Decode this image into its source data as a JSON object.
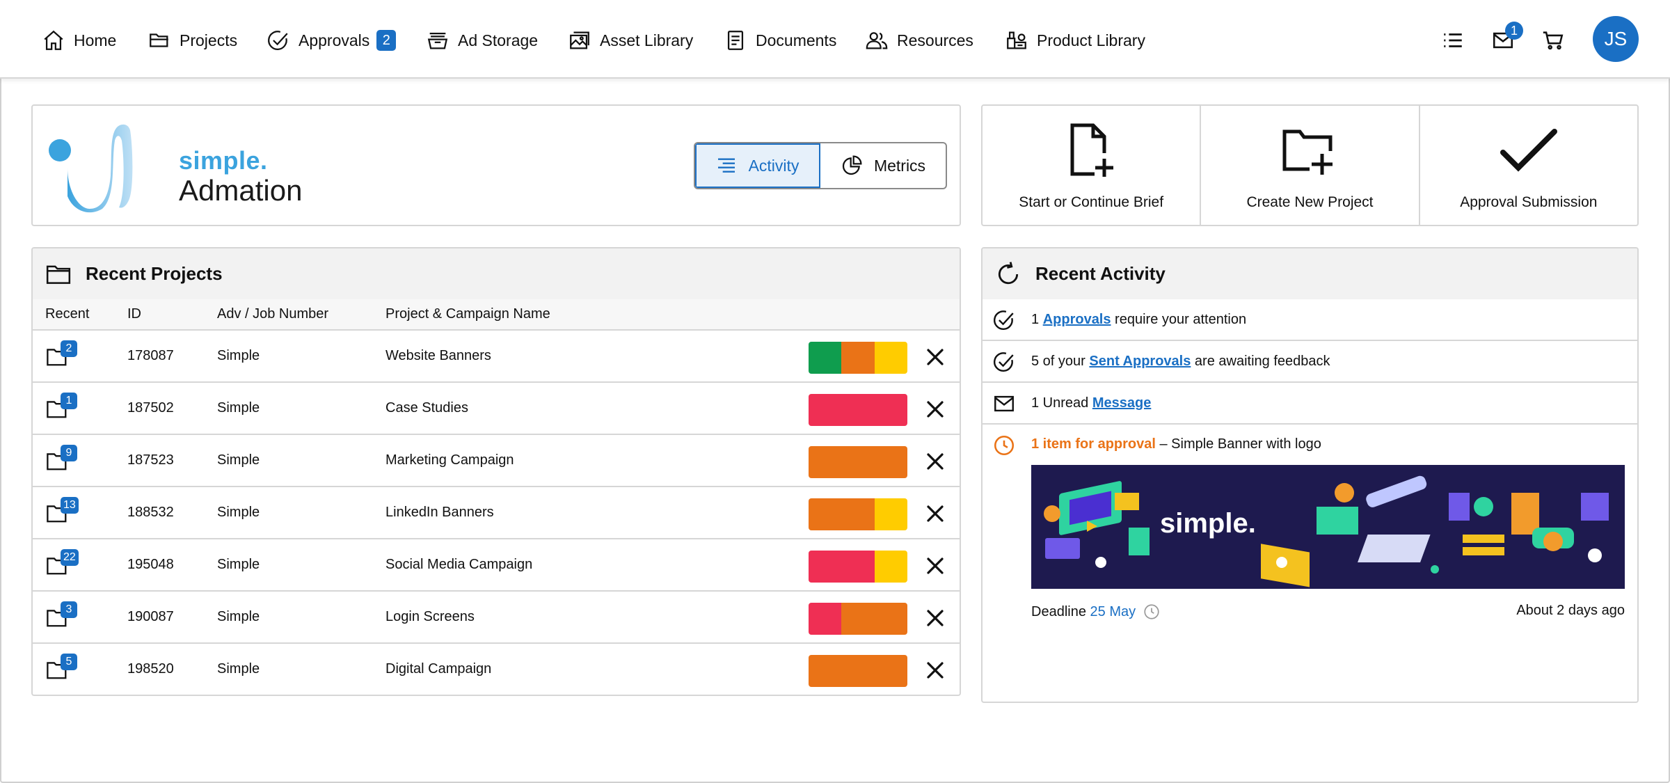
{
  "nav": {
    "items": [
      {
        "label": "Home",
        "icon": "home-icon"
      },
      {
        "label": "Projects",
        "icon": "folder-open-icon"
      },
      {
        "label": "Approvals",
        "icon": "check-circle-icon",
        "badge": "2"
      },
      {
        "label": "Ad Storage",
        "icon": "tray-icon"
      },
      {
        "label": "Asset Library",
        "icon": "images-icon"
      },
      {
        "label": "Documents",
        "icon": "document-icon"
      },
      {
        "label": "Resources",
        "icon": "users-icon"
      },
      {
        "label": "Product Library",
        "icon": "product-library-icon"
      }
    ],
    "mail_badge": "1",
    "avatar_initials": "JS"
  },
  "brand": {
    "line1": "simple.",
    "line2": "Admation"
  },
  "view_toggle": {
    "activity_label": "Activity",
    "metrics_label": "Metrics",
    "selected": "Activity"
  },
  "quick_actions": [
    {
      "label": "Start or Continue Brief",
      "icon": "new-document-icon"
    },
    {
      "label": "Create New Project",
      "icon": "new-folder-icon"
    },
    {
      "label": "Approval Submission",
      "icon": "checkmark-icon"
    }
  ],
  "recent_projects": {
    "title": "Recent Projects",
    "columns": {
      "recent": "Recent",
      "id": "ID",
      "job": "Adv / Job Number",
      "name": "Project & Campaign Name"
    },
    "rows": [
      {
        "badge": "2",
        "id": "178087",
        "job": "Simple",
        "name": "Website Banners",
        "status": [
          {
            "color": "#0f9d4e",
            "share": 0.33
          },
          {
            "color": "#ea7317",
            "share": 0.34
          },
          {
            "color": "#ffcc00",
            "share": 0.33
          }
        ]
      },
      {
        "badge": "1",
        "id": "187502",
        "job": "Simple",
        "name": "Case Studies",
        "status": [
          {
            "color": "#ef2f54",
            "share": 1.0
          }
        ]
      },
      {
        "badge": "9",
        "id": "187523",
        "job": "Simple",
        "name": "Marketing Campaign",
        "status": [
          {
            "color": "#ea7317",
            "share": 1.0
          }
        ]
      },
      {
        "badge": "13",
        "id": "188532",
        "job": "Simple",
        "name": "LinkedIn Banners",
        "status": [
          {
            "color": "#ea7317",
            "share": 0.67
          },
          {
            "color": "#ffcc00",
            "share": 0.33
          }
        ]
      },
      {
        "badge": "22",
        "id": "195048",
        "job": "Simple",
        "name": "Social Media Campaign",
        "status": [
          {
            "color": "#ef2f54",
            "share": 0.67
          },
          {
            "color": "#ffcc00",
            "share": 0.33
          }
        ]
      },
      {
        "badge": "3",
        "id": "190087",
        "job": "Simple",
        "name": "Login Screens",
        "status": [
          {
            "color": "#ef2f54",
            "share": 0.33
          },
          {
            "color": "#ea7317",
            "share": 0.67
          }
        ]
      },
      {
        "badge": "5",
        "id": "198520",
        "job": "Simple",
        "name": "Digital Campaign",
        "status": [
          {
            "color": "#ea7317",
            "share": 1.0
          }
        ]
      }
    ]
  },
  "recent_activity": {
    "title": "Recent Activity",
    "items": [
      {
        "prefix": "1 ",
        "link": "Approvals",
        "suffix": " require your attention",
        "icon": "check-circle-icon"
      },
      {
        "prefix": "5 of your ",
        "link": "Sent Approvals",
        "suffix": " are awaiting feedback",
        "icon": "check-circle-icon"
      },
      {
        "prefix": "1 Unread ",
        "link": "Message",
        "suffix": "",
        "icon": "mail-icon"
      }
    ],
    "approval": {
      "highlight": "1 item for approval",
      "rest": " – Simple Banner with logo",
      "banner_text": "simple.",
      "deadline_label": "Deadline",
      "deadline_date": "25 May",
      "age": "About 2 days ago"
    }
  }
}
